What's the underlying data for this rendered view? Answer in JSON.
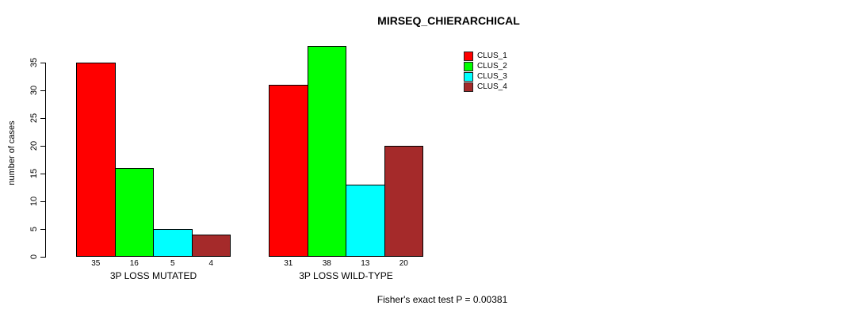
{
  "chart_data": {
    "type": "bar",
    "title": "MIRSEQ_CHIERARCHICAL",
    "ylabel": "number of cases",
    "xlabel": "",
    "ylim": [
      0,
      35
    ],
    "yticks": [
      0,
      5,
      10,
      15,
      20,
      25,
      30,
      35
    ],
    "grid": false,
    "legend_position": "top-right",
    "bar_border_color": "#000000",
    "categories": [
      "3P LOSS MUTATED",
      "3P LOSS WILD-TYPE"
    ],
    "series": [
      {
        "name": "CLUS_1",
        "color": "#ff0000",
        "values": [
          35,
          31
        ]
      },
      {
        "name": "CLUS_2",
        "color": "#00ff00",
        "values": [
          16,
          38
        ]
      },
      {
        "name": "CLUS_3",
        "color": "#00ffff",
        "values": [
          5,
          13
        ]
      },
      {
        "name": "CLUS_4",
        "color": "#a52a2a",
        "values": [
          4,
          20
        ]
      }
    ],
    "bar_value_labels": true,
    "annotation": "Fisher's exact test P = 0.00381"
  }
}
